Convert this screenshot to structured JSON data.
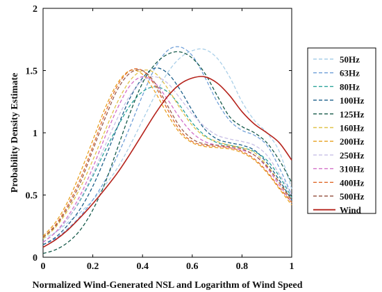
{
  "chart_data": {
    "type": "line",
    "title": "",
    "xlabel": "Normalized Wind-Generated NSL and Logarithm of Wind Speed",
    "ylabel": "Probability Density Estimate",
    "xlim": [
      0,
      1
    ],
    "ylim": [
      0,
      2
    ],
    "xticks": [
      "0",
      "0.2",
      "0.4",
      "0.6",
      "0.8",
      "1"
    ],
    "yticks": [
      "0",
      "0.5",
      "1",
      "1.5",
      "2"
    ],
    "legend_position": "outside-right",
    "grid": false,
    "x": [
      0,
      0.05,
      0.1,
      0.15,
      0.2,
      0.25,
      0.3,
      0.35,
      0.4,
      0.45,
      0.5,
      0.55,
      0.6,
      0.65,
      0.7,
      0.75,
      0.8,
      0.85,
      0.9,
      0.95,
      1
    ],
    "series": [
      {
        "name": "50Hz",
        "color": "#a9cfe8",
        "dashed": true,
        "values": [
          0.15,
          0.2,
          0.28,
          0.36,
          0.46,
          0.58,
          0.72,
          0.9,
          1.1,
          1.3,
          1.48,
          1.6,
          1.66,
          1.67,
          1.6,
          1.45,
          1.25,
          1.1,
          1.0,
          0.85,
          0.55
        ]
      },
      {
        "name": "63Hz",
        "color": "#6f9fd8",
        "dashed": true,
        "values": [
          0.1,
          0.15,
          0.23,
          0.33,
          0.46,
          0.62,
          0.82,
          1.05,
          1.3,
          1.52,
          1.66,
          1.69,
          1.62,
          1.45,
          1.25,
          1.1,
          1.02,
          0.98,
          0.9,
          0.72,
          0.5
        ]
      },
      {
        "name": "80Hz",
        "color": "#2aa39a",
        "dashed": true,
        "values": [
          0.12,
          0.2,
          0.31,
          0.46,
          0.65,
          0.86,
          1.05,
          1.22,
          1.33,
          1.37,
          1.33,
          1.22,
          1.08,
          0.98,
          0.92,
          0.9,
          0.88,
          0.85,
          0.78,
          0.65,
          0.48
        ]
      },
      {
        "name": "100Hz",
        "color": "#1c5f8a",
        "dashed": true,
        "values": [
          0.1,
          0.16,
          0.26,
          0.39,
          0.57,
          0.8,
          1.05,
          1.28,
          1.44,
          1.52,
          1.48,
          1.35,
          1.18,
          1.03,
          0.95,
          0.92,
          0.9,
          0.86,
          0.76,
          0.62,
          0.46
        ]
      },
      {
        "name": "125Hz",
        "color": "#165a4a",
        "dashed": true,
        "values": [
          0.03,
          0.06,
          0.12,
          0.22,
          0.38,
          0.6,
          0.88,
          1.16,
          1.4,
          1.55,
          1.63,
          1.65,
          1.6,
          1.48,
          1.3,
          1.13,
          1.05,
          1.0,
          0.92,
          0.78,
          0.6
        ]
      },
      {
        "name": "160Hz",
        "color": "#e0c34a",
        "dashed": true,
        "values": [
          0.15,
          0.24,
          0.38,
          0.56,
          0.78,
          1.02,
          1.25,
          1.42,
          1.5,
          1.48,
          1.36,
          1.2,
          1.06,
          0.97,
          0.93,
          0.9,
          0.88,
          0.84,
          0.74,
          0.6,
          0.44
        ]
      },
      {
        "name": "200Hz",
        "color": "#e8a020",
        "dashed": true,
        "values": [
          0.17,
          0.28,
          0.45,
          0.68,
          0.94,
          1.2,
          1.4,
          1.5,
          1.47,
          1.33,
          1.15,
          1.0,
          0.92,
          0.89,
          0.88,
          0.87,
          0.84,
          0.78,
          0.68,
          0.55,
          0.42
        ]
      },
      {
        "name": "250Hz",
        "color": "#c7bfe6",
        "dashed": true,
        "values": [
          0.12,
          0.2,
          0.31,
          0.47,
          0.67,
          0.9,
          1.12,
          1.3,
          1.42,
          1.45,
          1.4,
          1.28,
          1.15,
          1.05,
          0.98,
          0.95,
          0.93,
          0.9,
          0.82,
          0.67,
          0.5
        ]
      },
      {
        "name": "310Hz",
        "color": "#d26fc8",
        "dashed": true,
        "values": [
          0.12,
          0.2,
          0.33,
          0.5,
          0.72,
          0.97,
          1.2,
          1.38,
          1.45,
          1.4,
          1.27,
          1.12,
          1.0,
          0.93,
          0.9,
          0.88,
          0.86,
          0.82,
          0.72,
          0.58,
          0.44
        ]
      },
      {
        "name": "400Hz",
        "color": "#e06a2a",
        "dashed": true,
        "values": [
          0.16,
          0.26,
          0.42,
          0.63,
          0.89,
          1.16,
          1.38,
          1.5,
          1.5,
          1.38,
          1.19,
          1.02,
          0.93,
          0.9,
          0.89,
          0.88,
          0.85,
          0.79,
          0.69,
          0.56,
          0.44
        ]
      },
      {
        "name": "500Hz",
        "color": "#9a5a4a",
        "dashed": true,
        "values": [
          0.16,
          0.25,
          0.4,
          0.6,
          0.86,
          1.12,
          1.35,
          1.48,
          1.5,
          1.4,
          1.22,
          1.05,
          0.95,
          0.91,
          0.9,
          0.89,
          0.87,
          0.82,
          0.73,
          0.6,
          0.46
        ]
      },
      {
        "name": "Wind",
        "color": "#b5221b",
        "dashed": false,
        "values": [
          0.08,
          0.14,
          0.22,
          0.32,
          0.43,
          0.55,
          0.68,
          0.83,
          0.99,
          1.15,
          1.29,
          1.39,
          1.44,
          1.45,
          1.4,
          1.3,
          1.17,
          1.07,
          1.0,
          0.92,
          0.78
        ]
      }
    ]
  }
}
